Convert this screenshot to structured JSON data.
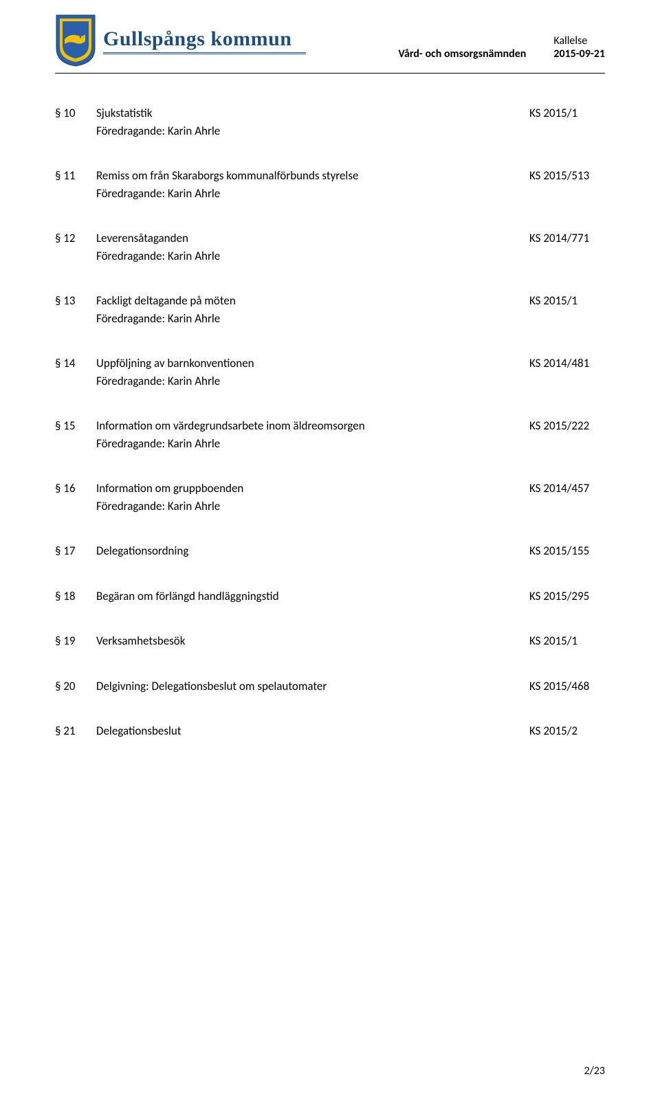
{
  "header": {
    "brand_name": "Gullspångs kommun",
    "board": "Vård- och omsorgsnämnden",
    "doc_type": "Kallelse",
    "date": "2015-09-21",
    "brand_color": "#1f4e79",
    "shield_colors": {
      "outer": "#2b5faa",
      "mid": "#f2c200",
      "inner": "#2b5faa",
      "fish": "#f2c200"
    }
  },
  "presenter_label": "Föredragande: Karin Ahrle",
  "agenda": [
    {
      "num": "§ 10",
      "title": "Sjukstatistik",
      "code": "KS 2015/1",
      "presenter": true
    },
    {
      "num": "§ 11",
      "title": "Remiss om från Skaraborgs kommunalförbunds styrelse",
      "code": "KS 2015/513",
      "presenter": true
    },
    {
      "num": "§ 12",
      "title": "Leverensåtaganden",
      "code": "KS 2014/771",
      "presenter": true
    },
    {
      "num": "§ 13",
      "title": "Fackligt deltagande på möten",
      "code": "KS 2015/1",
      "presenter": true
    },
    {
      "num": "§ 14",
      "title": "Uppföljning av barnkonventionen",
      "code": "KS 2014/481",
      "presenter": true
    },
    {
      "num": "§ 15",
      "title": "Information om värdegrundsarbete inom äldreomsorgen",
      "code": "KS 2015/222",
      "presenter": true
    },
    {
      "num": "§ 16",
      "title": "Information om gruppboenden",
      "code": "KS 2014/457",
      "presenter": true
    },
    {
      "num": "§ 17",
      "title": "Delegationsordning",
      "code": "KS 2015/155",
      "presenter": false
    },
    {
      "num": "§ 18",
      "title": "Begäran om förlängd handläggningstid",
      "code": "KS 2015/295",
      "presenter": false
    },
    {
      "num": "§ 19",
      "title": "Verksamhetsbesök",
      "code": "KS 2015/1",
      "presenter": false
    },
    {
      "num": "§ 20",
      "title": "Delgivning: Delegationsbeslut om spelautomater",
      "code": "KS 2015/468",
      "presenter": false
    },
    {
      "num": "§ 21",
      "title": "Delegationsbeslut",
      "code": "KS 2015/2",
      "presenter": false
    }
  ],
  "page_number": "2/23"
}
